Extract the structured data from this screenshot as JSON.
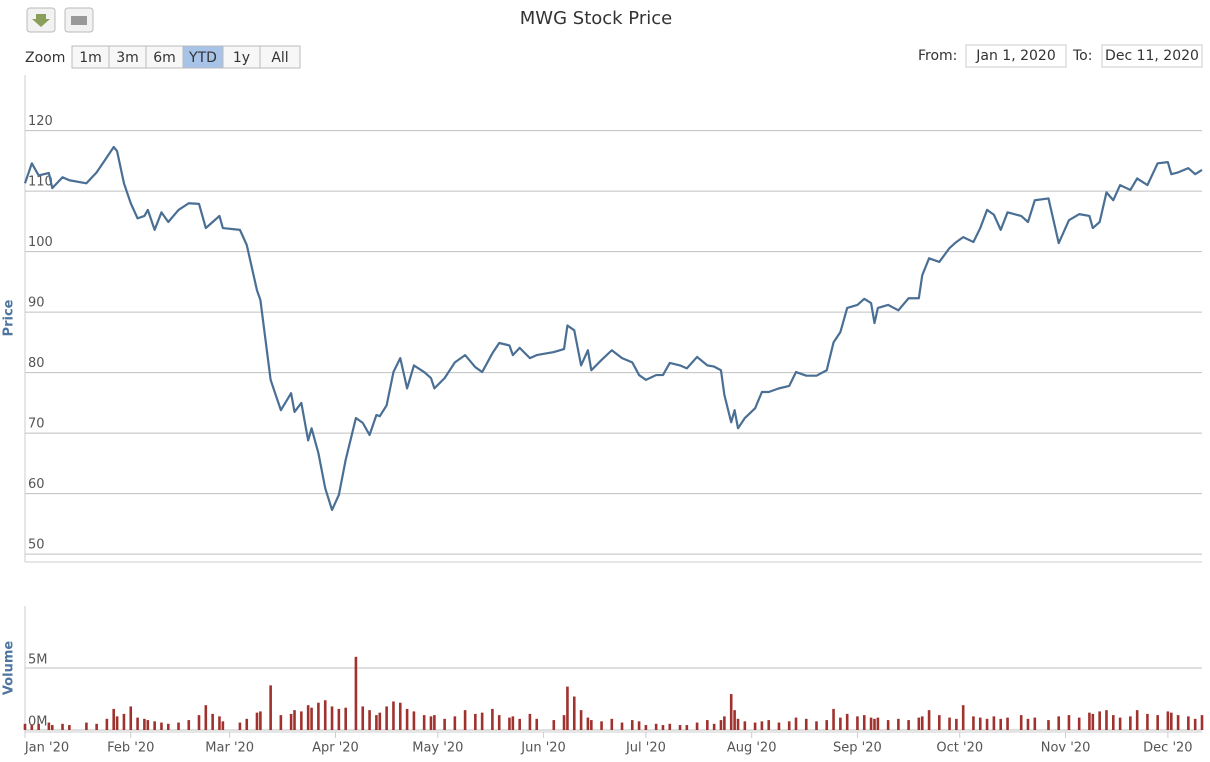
{
  "toolbar": {
    "zoom_label": "Zoom",
    "buttons": [
      "1m",
      "3m",
      "6m",
      "YTD",
      "1y",
      "All"
    ],
    "selected": "YTD",
    "from_label": "From:",
    "from": "Jan 1, 2020",
    "to_label": "To:",
    "to": "Dec 11, 2020"
  },
  "chart_data": {
    "type": "line",
    "title": "MWG Stock Price",
    "y_label": "Price",
    "y2_label": "Volume",
    "x": [
      "2020-01-01",
      "2020-01-03",
      "2020-01-05",
      "2020-01-08",
      "2020-01-09",
      "2020-01-12",
      "2020-01-14",
      "2020-01-19",
      "2020-01-22",
      "2020-01-25",
      "2020-01-27",
      "2020-01-28",
      "2020-01-30",
      "2020-02-01",
      "2020-02-03",
      "2020-02-05",
      "2020-02-06",
      "2020-02-08",
      "2020-02-10",
      "2020-02-12",
      "2020-02-15",
      "2020-02-18",
      "2020-02-21",
      "2020-02-23",
      "2020-02-25",
      "2020-02-27",
      "2020-02-28",
      "2020-03-04",
      "2020-03-06",
      "2020-03-09",
      "2020-03-10",
      "2020-03-13",
      "2020-03-16",
      "2020-03-19",
      "2020-03-20",
      "2020-03-22",
      "2020-03-24",
      "2020-03-25",
      "2020-03-27",
      "2020-03-29",
      "2020-03-31",
      "2020-04-02",
      "2020-04-04",
      "2020-04-07",
      "2020-04-09",
      "2020-04-11",
      "2020-04-13",
      "2020-04-14",
      "2020-04-16",
      "2020-04-18",
      "2020-04-20",
      "2020-04-22",
      "2020-04-24",
      "2020-04-27",
      "2020-04-29",
      "2020-04-30",
      "2020-05-03",
      "2020-05-06",
      "2020-05-09",
      "2020-05-12",
      "2020-05-14",
      "2020-05-17",
      "2020-05-19",
      "2020-05-22",
      "2020-05-23",
      "2020-05-25",
      "2020-05-28",
      "2020-05-30",
      "2020-06-04",
      "2020-06-07",
      "2020-06-08",
      "2020-06-10",
      "2020-06-12",
      "2020-06-14",
      "2020-06-15",
      "2020-06-18",
      "2020-06-21",
      "2020-06-24",
      "2020-06-27",
      "2020-06-29",
      "2020-07-01",
      "2020-07-04",
      "2020-07-06",
      "2020-07-08",
      "2020-07-11",
      "2020-07-13",
      "2020-07-16",
      "2020-07-19",
      "2020-07-21",
      "2020-07-23",
      "2020-07-24",
      "2020-07-26",
      "2020-07-27",
      "2020-07-28",
      "2020-07-30",
      "2020-08-02",
      "2020-08-04",
      "2020-08-06",
      "2020-08-09",
      "2020-08-12",
      "2020-08-14",
      "2020-08-17",
      "2020-08-20",
      "2020-08-23",
      "2020-08-25",
      "2020-08-27",
      "2020-08-29",
      "2020-09-01",
      "2020-09-03",
      "2020-09-05",
      "2020-09-06",
      "2020-09-07",
      "2020-09-10",
      "2020-09-13",
      "2020-09-16",
      "2020-09-19",
      "2020-09-20",
      "2020-09-22",
      "2020-09-25",
      "2020-09-28",
      "2020-09-30",
      "2020-10-02",
      "2020-10-05",
      "2020-10-07",
      "2020-10-09",
      "2020-10-11",
      "2020-10-13",
      "2020-10-15",
      "2020-10-19",
      "2020-10-21",
      "2020-10-23",
      "2020-10-27",
      "2020-10-30",
      "2020-11-02",
      "2020-11-05",
      "2020-11-08",
      "2020-11-09",
      "2020-11-11",
      "2020-11-13",
      "2020-11-15",
      "2020-11-17",
      "2020-11-20",
      "2020-11-22",
      "2020-11-25",
      "2020-11-28",
      "2020-12-01",
      "2020-12-02",
      "2020-12-04",
      "2020-12-07",
      "2020-12-09",
      "2020-12-11"
    ],
    "series": [
      {
        "name": "Price",
        "color": "#4a6f94",
        "values": [
          111.3,
          114.6,
          112.6,
          113,
          110.5,
          112.3,
          111.8,
          111.3,
          113.1,
          115.6,
          117.3,
          116.6,
          111.3,
          108,
          105.5,
          105.9,
          106.9,
          103.6,
          106.5,
          104.9,
          106.9,
          108,
          107.9,
          103.9,
          104.9,
          105.9,
          103.9,
          103.6,
          101.1,
          93.6,
          92,
          78.8,
          73.8,
          76.6,
          73.5,
          75,
          68.8,
          70.8,
          66.7,
          60.9,
          57.3,
          59.8,
          65.6,
          72.5,
          71.7,
          69.7,
          73,
          72.8,
          74.6,
          80.1,
          82.4,
          77.4,
          81.2,
          80.1,
          79.1,
          77.4,
          79.1,
          81.7,
          82.9,
          80.9,
          80.1,
          83.2,
          84.9,
          84.5,
          82.9,
          84.1,
          82.4,
          82.9,
          83.4,
          83.9,
          87.8,
          87,
          81.2,
          83.7,
          80.4,
          82.1,
          83.7,
          82.4,
          81.7,
          79.6,
          78.8,
          79.6,
          79.6,
          81.6,
          81.2,
          80.7,
          82.6,
          81.2,
          81,
          80.4,
          76.3,
          71.8,
          73.8,
          70.8,
          72.5,
          74.1,
          76.8,
          76.8,
          77.4,
          77.8,
          80.1,
          79.5,
          79.5,
          80.4,
          85,
          86.7,
          90.7,
          91.2,
          92.2,
          91.5,
          88.2,
          90.7,
          91.2,
          90.3,
          92.3,
          92.3,
          96.1,
          98.9,
          98.3,
          100.6,
          101.6,
          102.4,
          101.6,
          103.9,
          106.9,
          106.1,
          103.6,
          106.5,
          105.9,
          104.9,
          108.5,
          108.8,
          101.4,
          105.2,
          106.2,
          105.9,
          103.9,
          104.9,
          109.8,
          108.5,
          111,
          110.2,
          112.1,
          111,
          114.6,
          114.8,
          112.8,
          113.1,
          113.8,
          112.8,
          113.5
        ]
      },
      {
        "name": "Volume",
        "color": "#a0322e",
        "axis": "y2",
        "values": [
          0.5,
          0.4,
          0.5,
          0.6,
          0.4,
          0.5,
          0.4,
          0.6,
          0.5,
          0.9,
          1.7,
          1.1,
          1.3,
          1.9,
          1.0,
          0.9,
          0.8,
          0.7,
          0.6,
          0.5,
          0.6,
          0.8,
          1.2,
          2.0,
          1.3,
          1.1,
          0.7,
          0.6,
          0.9,
          1.4,
          1.5,
          3.6,
          1.2,
          1.3,
          1.6,
          1.5,
          2.0,
          1.8,
          2.2,
          2.4,
          1.9,
          1.7,
          1.8,
          5.9,
          1.9,
          1.6,
          1.2,
          1.4,
          1.9,
          2.3,
          2.2,
          1.7,
          1.5,
          1.2,
          1.1,
          1.2,
          0.9,
          1.1,
          1.6,
          1.3,
          1.4,
          1.7,
          1.2,
          1.0,
          1.1,
          0.9,
          1.3,
          0.9,
          0.8,
          1.2,
          3.5,
          2.7,
          1.6,
          1.0,
          0.8,
          0.7,
          0.9,
          0.6,
          0.8,
          0.7,
          0.4,
          0.5,
          0.4,
          0.5,
          0.4,
          0.4,
          0.6,
          0.8,
          0.5,
          0.8,
          1.1,
          2.9,
          1.6,
          0.9,
          0.7,
          0.6,
          0.7,
          0.8,
          0.6,
          0.7,
          1.0,
          0.9,
          0.7,
          0.8,
          1.7,
          1.0,
          1.3,
          1.1,
          1.2,
          1.0,
          0.9,
          1.0,
          0.8,
          0.9,
          0.8,
          1.0,
          1.1,
          1.6,
          1.2,
          1.0,
          0.9,
          2.0,
          1.1,
          1.0,
          0.9,
          1.1,
          0.9,
          1.0,
          1.2,
          0.9,
          1.0,
          0.8,
          1.1,
          1.2,
          1.0,
          1.4,
          1.3,
          1.5,
          1.6,
          1.2,
          1.0,
          1.1,
          1.6,
          1.3,
          1.2,
          1.5,
          1.4,
          1.2,
          1.1,
          0.9,
          1.2
        ]
      }
    ],
    "xlim": [
      "2020-01-01",
      "2020-12-11"
    ],
    "xticks": [
      {
        "value": "2020-01-01",
        "label": "Jan '20"
      },
      {
        "value": "2020-02-01",
        "label": "Feb '20"
      },
      {
        "value": "2020-03-01",
        "label": "Mar '20"
      },
      {
        "value": "2020-04-01",
        "label": "Apr '20"
      },
      {
        "value": "2020-05-01",
        "label": "May '20"
      },
      {
        "value": "2020-06-01",
        "label": "Jun '20"
      },
      {
        "value": "2020-07-01",
        "label": "Jul '20"
      },
      {
        "value": "2020-08-01",
        "label": "Aug '20"
      },
      {
        "value": "2020-09-01",
        "label": "Sep '20"
      },
      {
        "value": "2020-10-01",
        "label": "Oct '20"
      },
      {
        "value": "2020-11-01",
        "label": "Nov '20"
      },
      {
        "value": "2020-12-01",
        "label": "Dec '20"
      }
    ],
    "ylim": [
      48.7,
      129.2
    ],
    "yticks": [
      50,
      60,
      70,
      80,
      90,
      100,
      110,
      120
    ],
    "y2lim": [
      0,
      10
    ],
    "y2ticks": [
      {
        "value": 0,
        "label": "0M"
      },
      {
        "value": 5,
        "label": "5M"
      }
    ],
    "grid": true
  }
}
